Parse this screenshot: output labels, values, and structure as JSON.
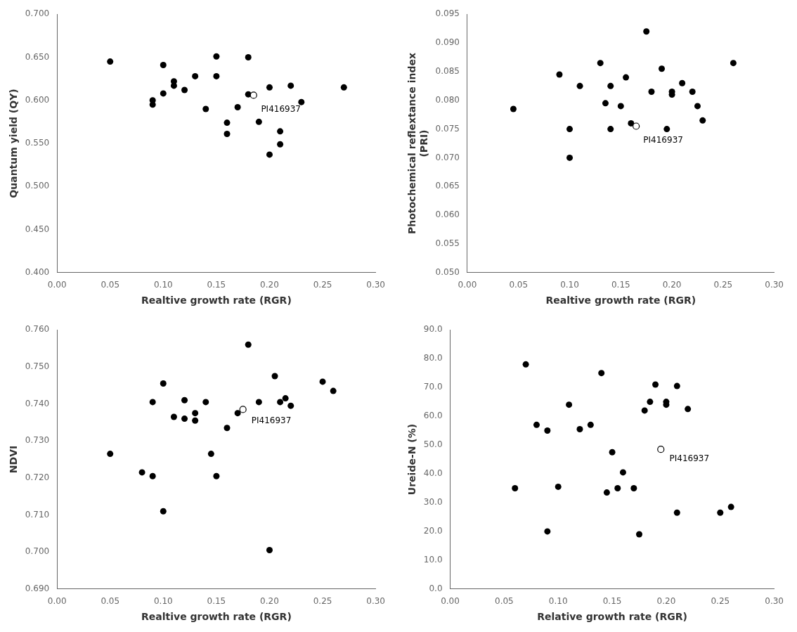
{
  "chart_data": [
    {
      "type": "scatter",
      "xlabel": "Realtive growth rate (RGR)",
      "ylabel": "Quantum yield (QY)",
      "xlim": [
        0.0,
        0.3
      ],
      "ylim": [
        0.4,
        0.7
      ],
      "xticks": [
        {
          "value": 0.0,
          "label": "0.00"
        },
        {
          "value": 0.05,
          "label": "0.05"
        },
        {
          "value": 0.1,
          "label": "0.10"
        },
        {
          "value": 0.15,
          "label": "0.15"
        },
        {
          "value": 0.2,
          "label": "0.20"
        },
        {
          "value": 0.25,
          "label": "0.25"
        },
        {
          "value": 0.3,
          "label": "0.30"
        }
      ],
      "yticks": [
        {
          "value": 0.4,
          "label": "0.400"
        },
        {
          "value": 0.45,
          "label": "0.450"
        },
        {
          "value": 0.5,
          "label": "0.500"
        },
        {
          "value": 0.55,
          "label": "0.550"
        },
        {
          "value": 0.6,
          "label": "0.600"
        },
        {
          "value": 0.65,
          "label": "0.650"
        },
        {
          "value": 0.7,
          "label": "0.700"
        }
      ],
      "grid": false,
      "series": [
        {
          "color": "black",
          "marker": "circle",
          "x": [
            0.05,
            0.09,
            0.09,
            0.1,
            0.1,
            0.11,
            0.11,
            0.12,
            0.13,
            0.14,
            0.15,
            0.15,
            0.16,
            0.16,
            0.17,
            0.18,
            0.18,
            0.19,
            0.2,
            0.2,
            0.21,
            0.21,
            0.22,
            0.23,
            0.27
          ],
          "values": [
            0.645,
            0.595,
            0.6,
            0.608,
            0.641,
            0.617,
            0.622,
            0.612,
            0.628,
            0.59,
            0.651,
            0.628,
            0.561,
            0.574,
            0.592,
            0.65,
            0.607,
            0.575,
            0.537,
            0.615,
            0.564,
            0.549,
            0.617,
            0.598,
            0.615
          ]
        },
        {
          "color": "black",
          "marker": "circle_open",
          "x": [
            0.185
          ],
          "values": [
            0.606
          ]
        }
      ],
      "annotations": [
        {
          "text": "PI416937",
          "x": 0.192,
          "y": 0.594
        }
      ]
    },
    {
      "type": "scatter",
      "xlabel": "Realtive growth rate (RGR)",
      "ylabel": "Photochemical reflextance index\n(PRI)",
      "xlim": [
        0.0,
        0.3
      ],
      "ylim": [
        0.05,
        0.095
      ],
      "xticks": [
        {
          "value": 0.0,
          "label": "0.00"
        },
        {
          "value": 0.05,
          "label": "0.05"
        },
        {
          "value": 0.1,
          "label": "0.10"
        },
        {
          "value": 0.15,
          "label": "0.15"
        },
        {
          "value": 0.2,
          "label": "0.20"
        },
        {
          "value": 0.25,
          "label": "0.25"
        },
        {
          "value": 0.3,
          "label": "0.30"
        }
      ],
      "yticks": [
        {
          "value": 0.05,
          "label": "0.050"
        },
        {
          "value": 0.055,
          "label": "0.055"
        },
        {
          "value": 0.06,
          "label": "0.060"
        },
        {
          "value": 0.065,
          "label": "0.065"
        },
        {
          "value": 0.07,
          "label": "0.070"
        },
        {
          "value": 0.075,
          "label": "0.075"
        },
        {
          "value": 0.08,
          "label": "0.080"
        },
        {
          "value": 0.085,
          "label": "0.085"
        },
        {
          "value": 0.09,
          "label": "0.090"
        },
        {
          "value": 0.095,
          "label": "0.095"
        }
      ],
      "grid": false,
      "series": [
        {
          "color": "black",
          "marker": "circle",
          "x": [
            0.045,
            0.09,
            0.1,
            0.1,
            0.11,
            0.13,
            0.135,
            0.14,
            0.14,
            0.15,
            0.155,
            0.16,
            0.175,
            0.18,
            0.19,
            0.195,
            0.2,
            0.2,
            0.21,
            0.22,
            0.225,
            0.23,
            0.26
          ],
          "values": [
            0.0785,
            0.0845,
            0.07,
            0.075,
            0.0825,
            0.0865,
            0.0795,
            0.0825,
            0.075,
            0.079,
            0.084,
            0.076,
            0.092,
            0.0815,
            0.0855,
            0.075,
            0.0815,
            0.081,
            0.083,
            0.0815,
            0.079,
            0.0765,
            0.0865
          ]
        },
        {
          "color": "black",
          "marker": "circle_open",
          "x": [
            0.165
          ],
          "values": [
            0.0755
          ]
        }
      ],
      "annotations": [
        {
          "text": "PI416937",
          "x": 0.172,
          "y": 0.0737
        }
      ]
    },
    {
      "type": "scatter",
      "xlabel": "Realtive growth rate (RGR)",
      "ylabel": "NDVI",
      "xlim": [
        0.0,
        0.3
      ],
      "ylim": [
        0.69,
        0.76
      ],
      "xticks": [
        {
          "value": 0.0,
          "label": "0.00"
        },
        {
          "value": 0.05,
          "label": "0.05"
        },
        {
          "value": 0.1,
          "label": "0.10"
        },
        {
          "value": 0.15,
          "label": "0.15"
        },
        {
          "value": 0.2,
          "label": "0.20"
        },
        {
          "value": 0.25,
          "label": "0.25"
        },
        {
          "value": 0.3,
          "label": "0.30"
        }
      ],
      "yticks": [
        {
          "value": 0.69,
          "label": "0.690"
        },
        {
          "value": 0.7,
          "label": "0.700"
        },
        {
          "value": 0.71,
          "label": "0.710"
        },
        {
          "value": 0.72,
          "label": "0.720"
        },
        {
          "value": 0.73,
          "label": "0.730"
        },
        {
          "value": 0.74,
          "label": "0.740"
        },
        {
          "value": 0.75,
          "label": "0.750"
        },
        {
          "value": 0.76,
          "label": "0.760"
        }
      ],
      "grid": false,
      "series": [
        {
          "color": "black",
          "marker": "circle",
          "x": [
            0.05,
            0.08,
            0.09,
            0.09,
            0.1,
            0.1,
            0.11,
            0.12,
            0.12,
            0.13,
            0.13,
            0.14,
            0.145,
            0.15,
            0.16,
            0.17,
            0.18,
            0.19,
            0.2,
            0.205,
            0.21,
            0.215,
            0.22,
            0.25,
            0.26
          ],
          "values": [
            0.7265,
            0.7215,
            0.7205,
            0.7405,
            0.711,
            0.7455,
            0.7365,
            0.736,
            0.741,
            0.7375,
            0.7355,
            0.7405,
            0.7265,
            0.7205,
            0.7335,
            0.7375,
            0.756,
            0.7405,
            0.7005,
            0.7475,
            0.7405,
            0.7415,
            0.7395,
            0.746,
            0.7435
          ]
        },
        {
          "color": "black",
          "marker": "circle_open",
          "x": [
            0.175
          ],
          "values": [
            0.7385
          ]
        }
      ],
      "annotations": [
        {
          "text": "PI416937",
          "x": 0.183,
          "y": 0.7365
        }
      ]
    },
    {
      "type": "scatter",
      "xlabel": "Relative growth rate (RGR)",
      "ylabel": "Ureide-N (%)",
      "xlim": [
        0.0,
        0.3
      ],
      "ylim": [
        0.0,
        90.0
      ],
      "xticks": [
        {
          "value": 0.0,
          "label": "0.00"
        },
        {
          "value": 0.05,
          "label": "0.05"
        },
        {
          "value": 0.1,
          "label": "0.10"
        },
        {
          "value": 0.15,
          "label": "0.15"
        },
        {
          "value": 0.2,
          "label": "0.20"
        },
        {
          "value": 0.25,
          "label": "0.25"
        },
        {
          "value": 0.3,
          "label": "0.30"
        }
      ],
      "yticks": [
        {
          "value": 0.0,
          "label": "0.0"
        },
        {
          "value": 10.0,
          "label": "10.0"
        },
        {
          "value": 20.0,
          "label": "20.0"
        },
        {
          "value": 30.0,
          "label": "30.0"
        },
        {
          "value": 40.0,
          "label": "40.0"
        },
        {
          "value": 50.0,
          "label": "50.0"
        },
        {
          "value": 60.0,
          "label": "60.0"
        },
        {
          "value": 70.0,
          "label": "70.0"
        },
        {
          "value": 80.0,
          "label": "80.0"
        },
        {
          "value": 90.0,
          "label": "90.0"
        }
      ],
      "grid": false,
      "series": [
        {
          "color": "black",
          "marker": "circle",
          "x": [
            0.06,
            0.07,
            0.08,
            0.09,
            0.09,
            0.1,
            0.11,
            0.12,
            0.13,
            0.14,
            0.145,
            0.15,
            0.155,
            0.16,
            0.17,
            0.175,
            0.18,
            0.185,
            0.19,
            0.2,
            0.2,
            0.21,
            0.21,
            0.22,
            0.25,
            0.26
          ],
          "values": [
            35.0,
            78.0,
            57.0,
            55.0,
            20.0,
            35.5,
            64.0,
            55.5,
            57.0,
            75.0,
            33.5,
            47.5,
            35.0,
            40.5,
            35.0,
            19.0,
            62.0,
            65.0,
            71.0,
            65.0,
            64.0,
            26.5,
            70.5,
            62.5,
            26.5,
            28.5
          ]
        },
        {
          "color": "black",
          "marker": "circle_open",
          "x": [
            0.195
          ],
          "values": [
            48.5
          ]
        }
      ],
      "annotations": [
        {
          "text": "PI416937",
          "x": 0.203,
          "y": 46.5
        }
      ]
    }
  ]
}
